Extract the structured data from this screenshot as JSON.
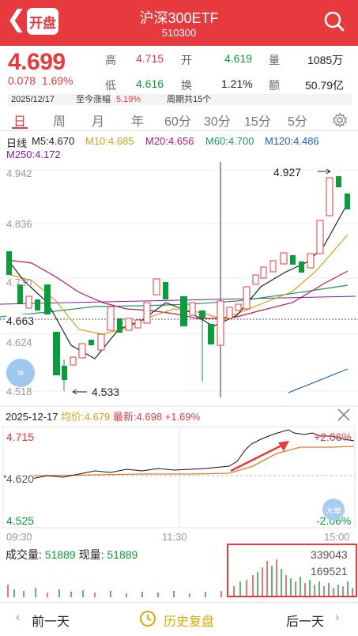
{
  "header": {
    "logo": "开盘",
    "title": "沪深300ETF",
    "code": "510300"
  },
  "quote": {
    "price": "4.699",
    "change": "0.078",
    "change_pct": "1.69%",
    "high_label": "高",
    "high": "4.715",
    "open_label": "开",
    "open": "4.619",
    "volume_label": "量",
    "volume": "1085万",
    "low_label": "低",
    "low": "4.616",
    "turnover_label": "换",
    "turnover": "1.21%",
    "amount_label": "额",
    "amount": "50.79亿",
    "date": "2025/12/17",
    "since_label": "至今涨幅",
    "since_value": "5.19%",
    "period_label": "周期共15个"
  },
  "tabs": [
    "日",
    "周",
    "月",
    "年",
    "60分",
    "30分",
    "15分",
    "5分"
  ],
  "kline": {
    "type_label": "日线",
    "ma": [
      {
        "label": "M5:4.670",
        "color": "#222222"
      },
      {
        "label": "M10:4.685",
        "color": "#d4a017"
      },
      {
        "label": "M20:4.656",
        "color": "#c2185b"
      },
      {
        "label": "M60:4.700",
        "color": "#1a9a5a"
      },
      {
        "label": "M120:4.486",
        "color": "#1e5fbf"
      },
      {
        "label": "M250:4.172",
        "color": "#7b1fa2"
      }
    ],
    "y_ticks": [
      "4.942",
      "4.836",
      "4.730",
      "4.624",
      "4.518"
    ],
    "marker": "4.663",
    "high_mark": "4.927",
    "low_mark": "4.533"
  },
  "intraday": {
    "date": "2025-12-17",
    "avg_label": "均价:",
    "avg": "4.679",
    "last_label": "最新:",
    "last": "4.698",
    "last_pct": "+1.69%",
    "y_top": "4.715",
    "y_mid": "4.620",
    "y_bot": "4.525",
    "pct_top": "+2.06%",
    "pct_bot": "-2.06%",
    "times": [
      "09:30",
      "11:30",
      "15:00"
    ],
    "big_order": "大单"
  },
  "volume": {
    "vol_label": "成交量:",
    "vol": "51889",
    "cur_label": "现量:",
    "cur": "51889",
    "max": "339043",
    "mid": "169521"
  },
  "footer": {
    "prev": "前一天",
    "history": "历史复盘",
    "next": "后一天"
  },
  "colors": {
    "up": "#e63a3f",
    "down": "#0b9c3d"
  }
}
